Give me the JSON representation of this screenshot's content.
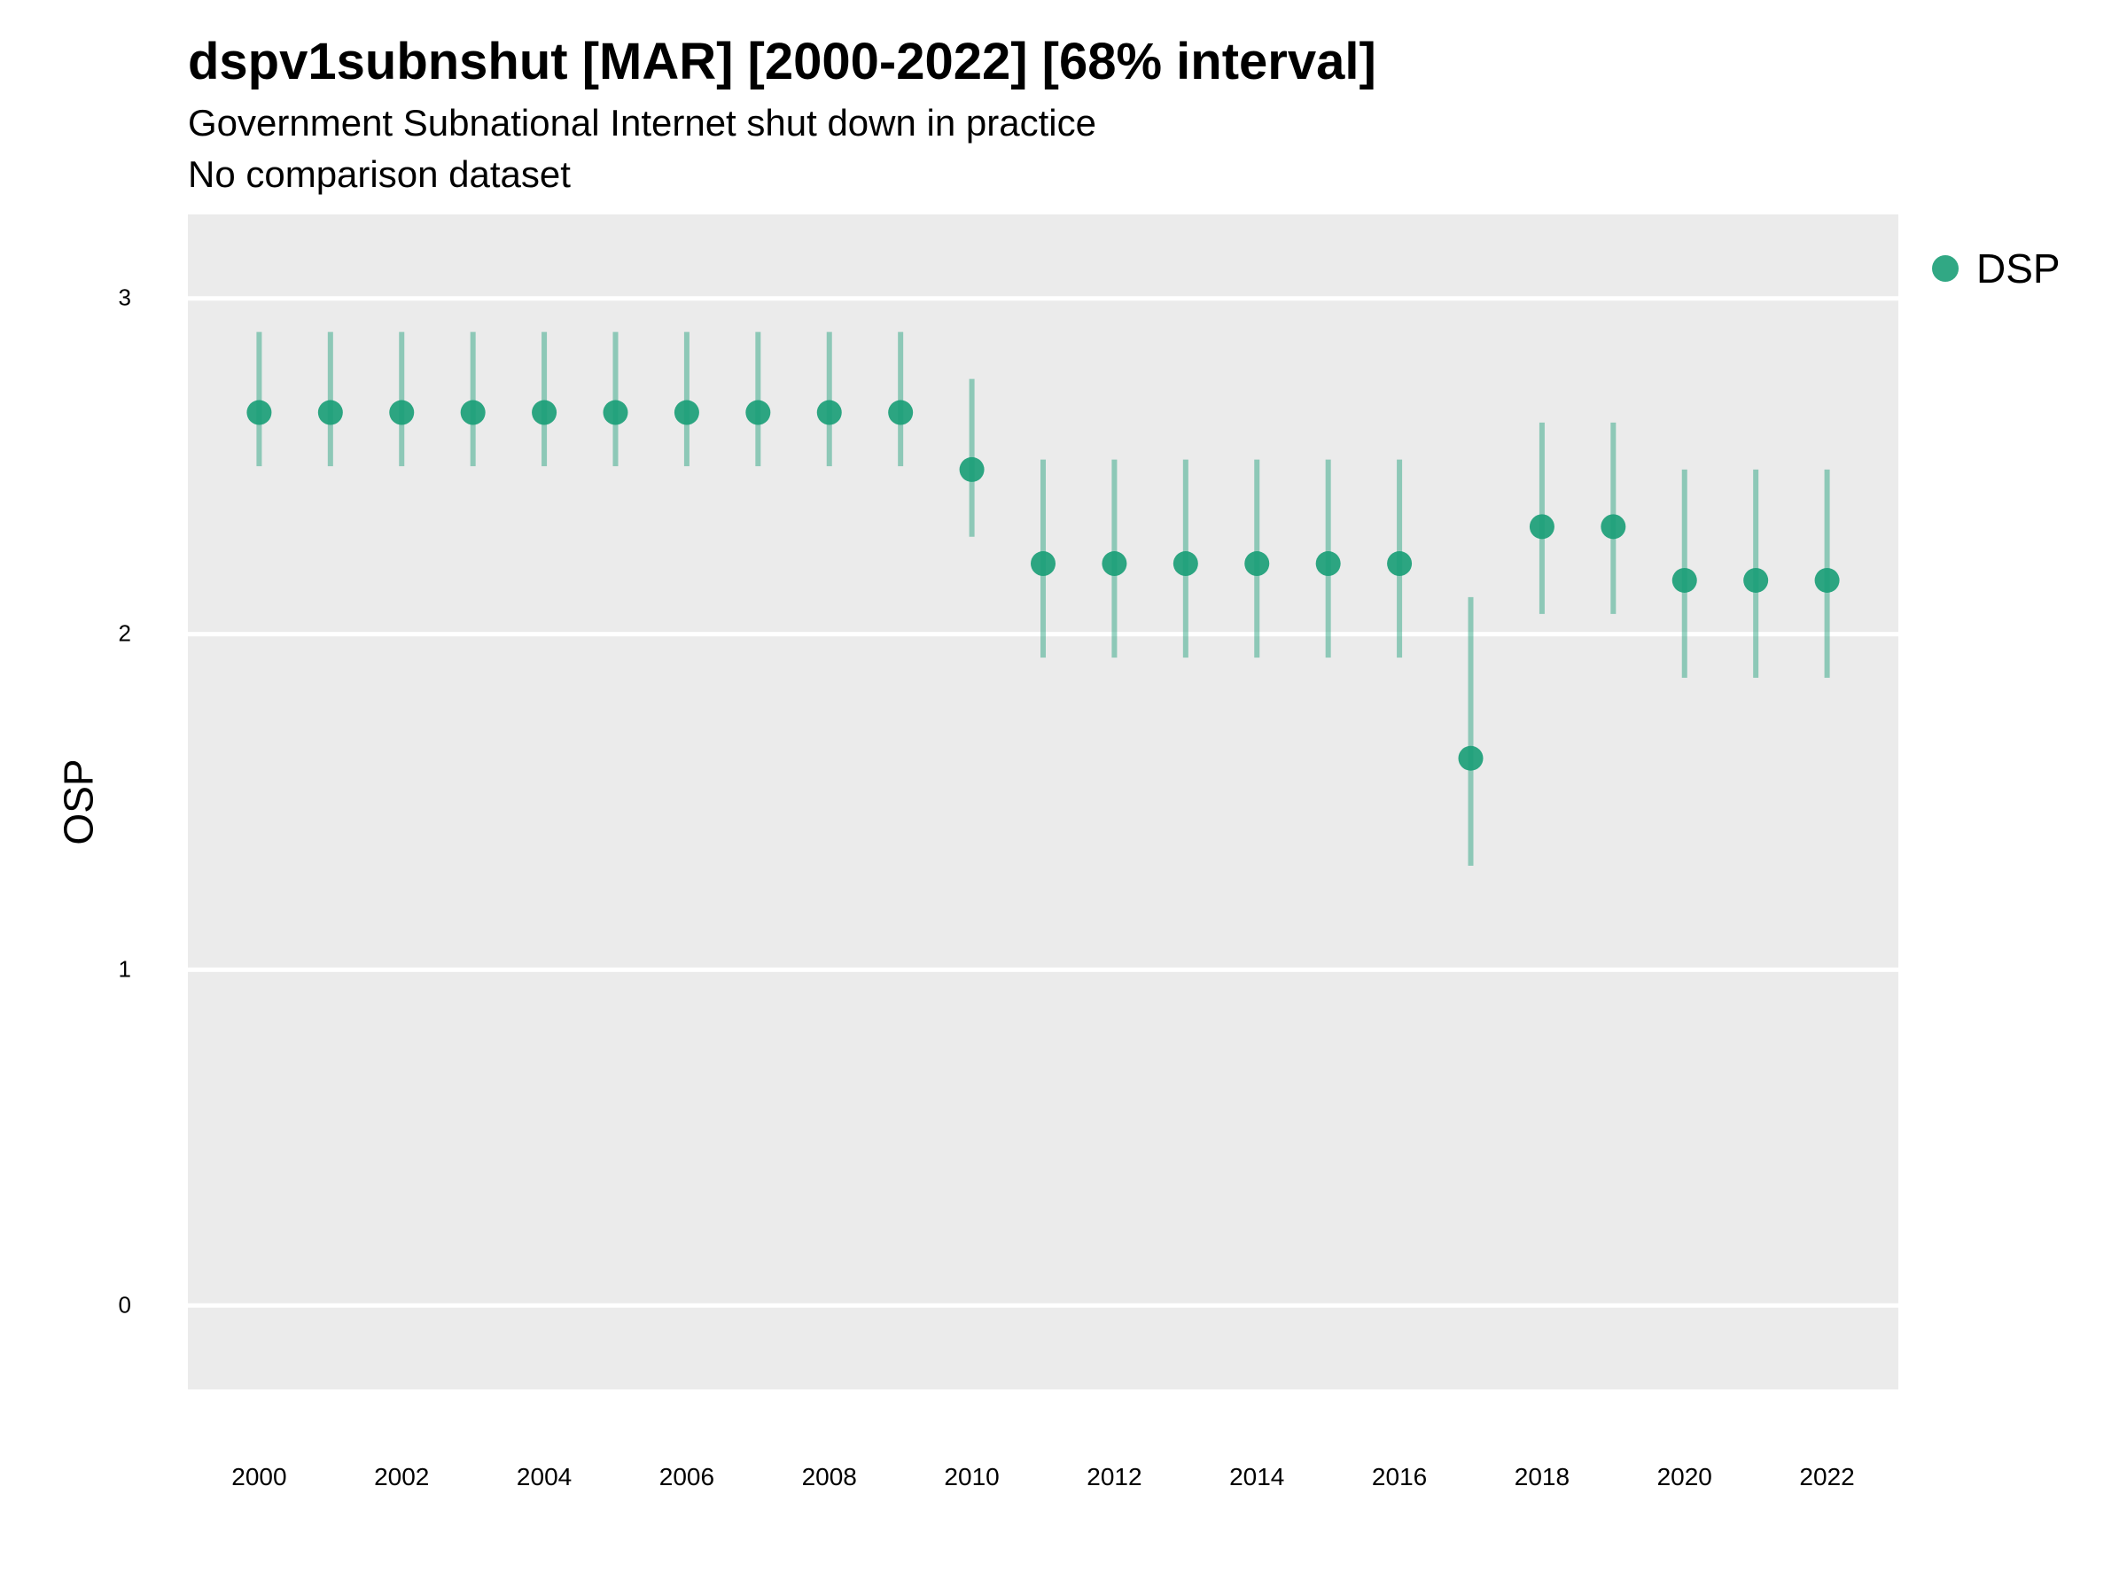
{
  "chart_data": {
    "type": "scatter",
    "title": "dspv1subnshut [MAR] [2000-2022] [68% interval]",
    "subtitle": "Government Subnational Internet shut down in practice",
    "subtitle2": "No comparison dataset",
    "xlabel": "",
    "ylabel": "OSP",
    "ylim": [
      -0.25,
      3.25
    ],
    "xlim": [
      1999,
      2023
    ],
    "y_ticks": [
      0,
      1,
      2,
      3
    ],
    "x_ticks": [
      2000,
      2002,
      2004,
      2006,
      2008,
      2010,
      2012,
      2014,
      2016,
      2018,
      2020,
      2022
    ],
    "grid": true,
    "legend_position": "right-top",
    "series": [
      {
        "name": "DSP",
        "color": "#1b9e77",
        "x": [
          2000,
          2001,
          2002,
          2003,
          2004,
          2005,
          2006,
          2007,
          2008,
          2009,
          2010,
          2011,
          2012,
          2013,
          2014,
          2015,
          2016,
          2017,
          2018,
          2019,
          2020,
          2021,
          2022
        ],
        "y": [
          2.66,
          2.66,
          2.66,
          2.66,
          2.66,
          2.66,
          2.66,
          2.66,
          2.66,
          2.66,
          2.49,
          2.21,
          2.21,
          2.21,
          2.21,
          2.21,
          2.21,
          1.63,
          2.32,
          2.32,
          2.16,
          2.16,
          2.16
        ],
        "lower": [
          2.5,
          2.5,
          2.5,
          2.5,
          2.5,
          2.5,
          2.5,
          2.5,
          2.5,
          2.5,
          2.29,
          1.93,
          1.93,
          1.93,
          1.93,
          1.93,
          1.93,
          1.31,
          2.06,
          2.06,
          1.87,
          1.87,
          1.87
        ],
        "upper": [
          2.9,
          2.9,
          2.9,
          2.9,
          2.9,
          2.9,
          2.9,
          2.9,
          2.9,
          2.9,
          2.76,
          2.52,
          2.52,
          2.52,
          2.52,
          2.52,
          2.52,
          2.11,
          2.63,
          2.63,
          2.49,
          2.49,
          2.49
        ]
      }
    ]
  }
}
